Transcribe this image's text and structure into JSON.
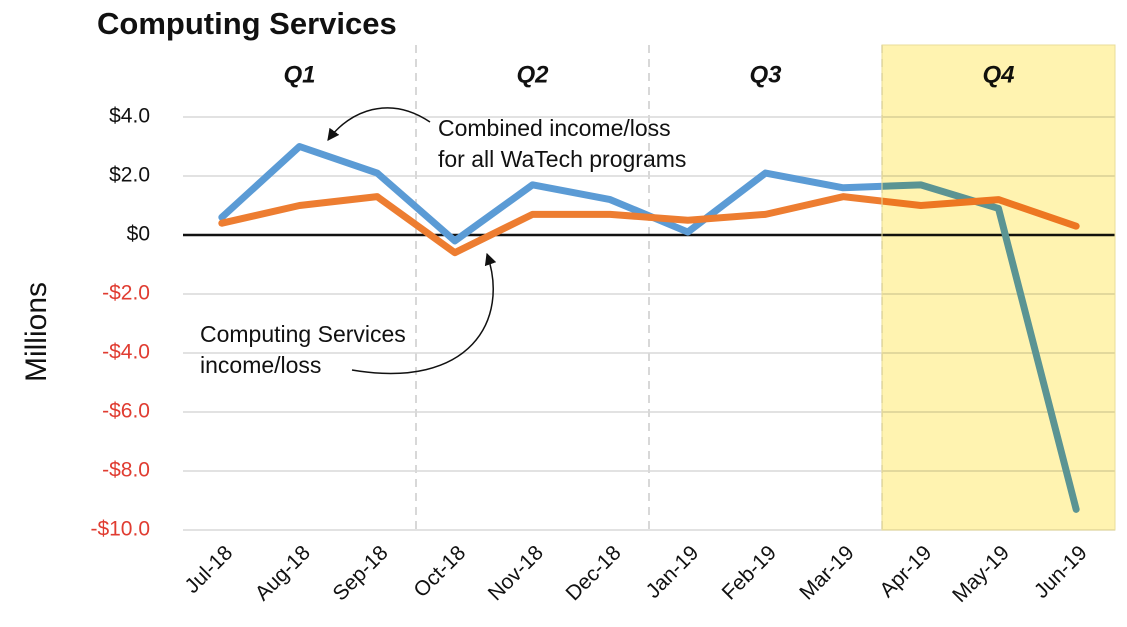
{
  "chart_data": {
    "type": "line",
    "title": "Computing Services",
    "y_label": "Millions",
    "categories": [
      "Jul-18",
      "Aug-18",
      "Sep-18",
      "Oct-18",
      "Nov-18",
      "Dec-18",
      "Jan-19",
      "Feb-19",
      "Mar-19",
      "Apr-19",
      "May-19",
      "Jun-19"
    ],
    "series": [
      {
        "color": "#5b9bd5",
        "values": [
          0.6,
          3.0,
          2.1,
          -0.2,
          1.7,
          1.2,
          0.1,
          2.1,
          1.6,
          1.7,
          0.9,
          -9.3
        ]
      },
      {
        "color": "#ed7d31",
        "values": [
          0.4,
          1.0,
          1.3,
          -0.6,
          0.7,
          0.7,
          0.5,
          0.7,
          1.3,
          1.0,
          1.2,
          0.3
        ]
      }
    ],
    "ylim": [
      -10,
      4
    ],
    "yticks": [
      {
        "value": -10,
        "label": "-$10.0"
      },
      {
        "value": -8,
        "label": "-$8.0"
      },
      {
        "value": -6,
        "label": "-$6.0"
      },
      {
        "value": -4,
        "label": "-$4.0"
      },
      {
        "value": -2,
        "label": "-$2.0"
      },
      {
        "value": 0,
        "label": "$0"
      },
      {
        "value": 2,
        "label": "$2.0"
      },
      {
        "value": 4,
        "label": "$4.0"
      }
    ],
    "negative_label_color": "#e03c31",
    "grid": true,
    "quarters": [
      "Q1",
      "Q2",
      "Q3",
      "Q4"
    ],
    "highlight_color": "#fff3b0",
    "annotations": [
      {
        "text": [
          "Combined income/loss",
          "for all WaTech programs"
        ]
      },
      {
        "text": [
          "Computing Services",
          "income/loss"
        ]
      }
    ]
  }
}
